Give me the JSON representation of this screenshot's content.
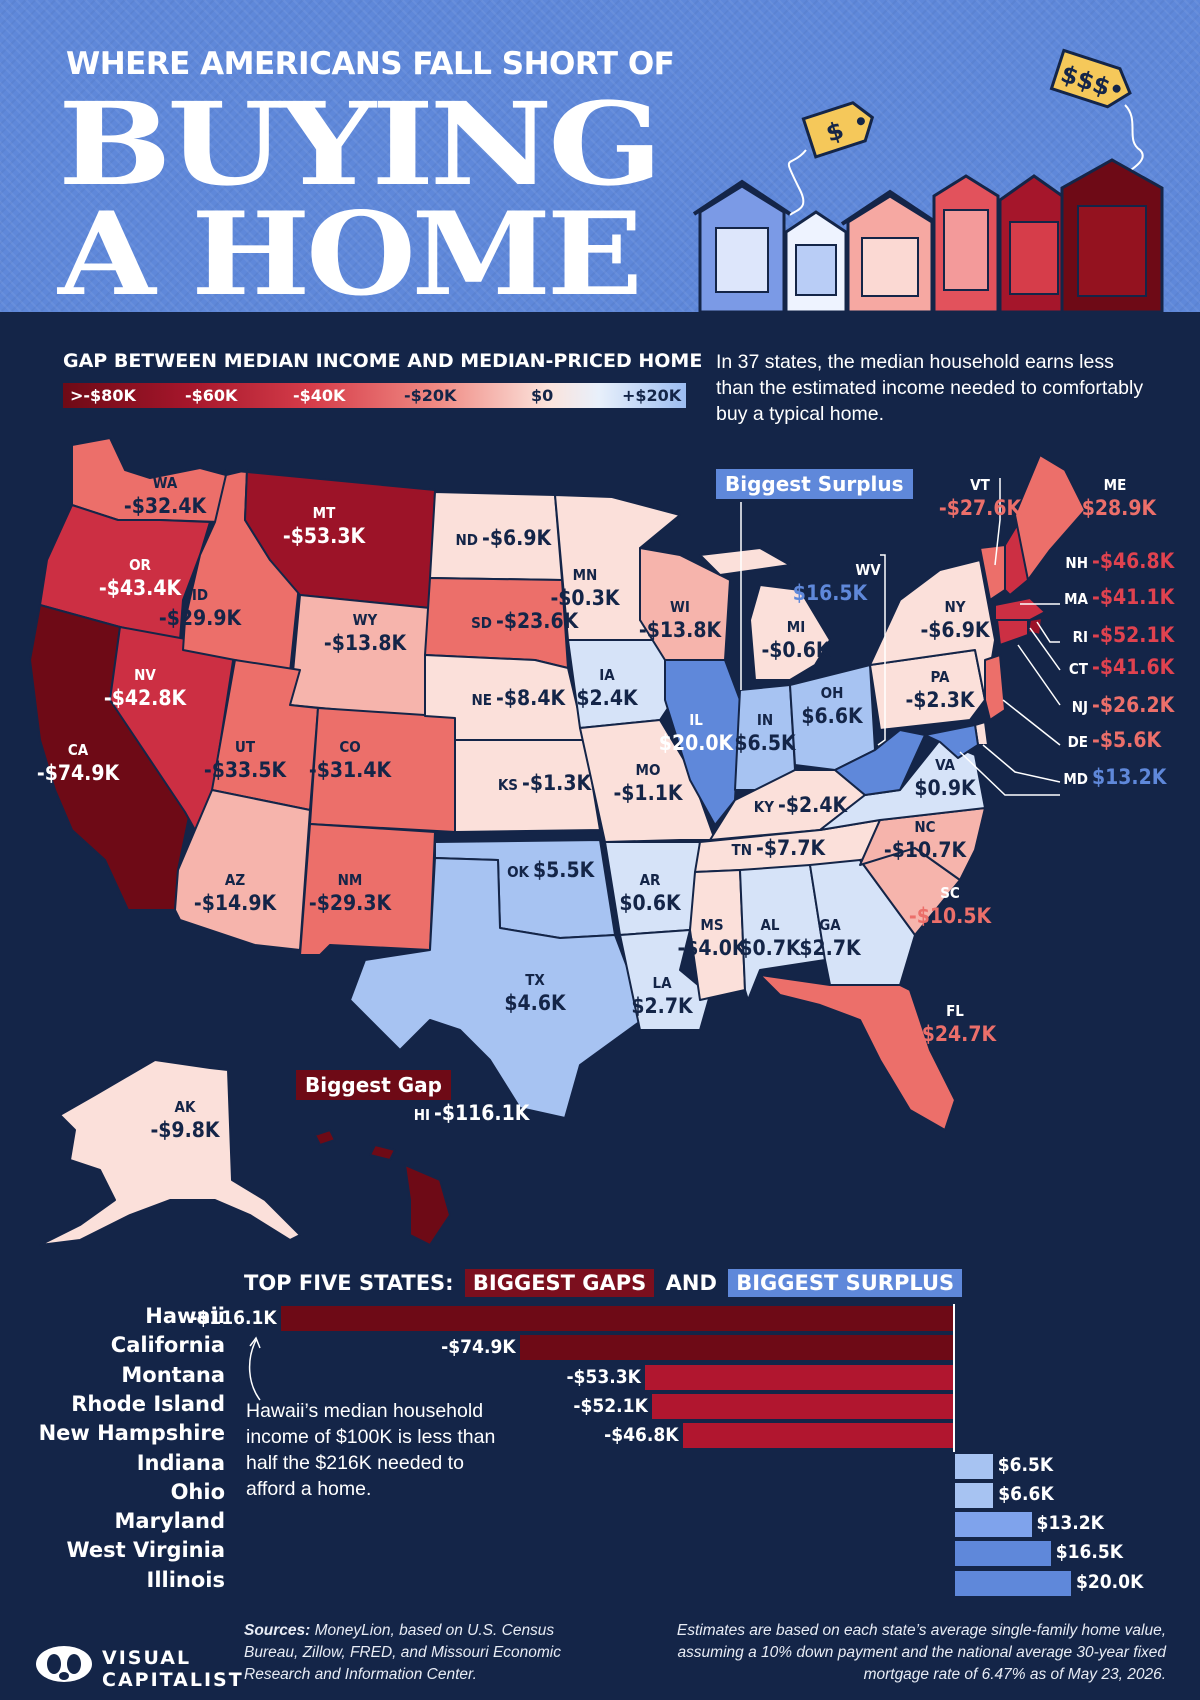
{
  "header": {
    "kicker": "WHERE AMERICANS FALL SHORT OF",
    "title_line1": "BUYING",
    "title_line2": "A HOME",
    "price_tag_small": "$",
    "price_tag_large": "$$$"
  },
  "legend": {
    "title": "GAP BETWEEN MEDIAN INCOME AND MEDIAN-PRICED HOME",
    "labels": [
      ">-$80K",
      "-$60K",
      "-$40K",
      "-$20K",
      "$0",
      "+$20K"
    ]
  },
  "intro": "In 37 states, the median household earns less than the estimated income needed to comfortably buy a typical home.",
  "callouts": {
    "biggest_surplus": "Biggest Surplus",
    "biggest_gap": "Biggest Gap"
  },
  "states": {
    "WA": {
      "label": "WA",
      "value": "-$32.4K",
      "gap": -32.4
    },
    "OR": {
      "label": "OR",
      "value": "-$43.4K",
      "gap": -43.4
    },
    "CA": {
      "label": "CA",
      "value": "-$74.9K",
      "gap": -74.9
    },
    "NV": {
      "label": "NV",
      "value": "-$42.8K",
      "gap": -42.8
    },
    "ID": {
      "label": "ID",
      "value": "-$29.9K",
      "gap": -29.9
    },
    "MT": {
      "label": "MT",
      "value": "-$53.3K",
      "gap": -53.3
    },
    "WY": {
      "label": "WY",
      "value": "-$13.8K",
      "gap": -13.8
    },
    "UT": {
      "label": "UT",
      "value": "-$33.5K",
      "gap": -33.5
    },
    "CO": {
      "label": "CO",
      "value": "-$31.4K",
      "gap": -31.4
    },
    "AZ": {
      "label": "AZ",
      "value": "-$14.9K",
      "gap": -14.9
    },
    "NM": {
      "label": "NM",
      "value": "-$29.3K",
      "gap": -29.3
    },
    "ND": {
      "label": "ND",
      "value": "-$6.9K",
      "gap": -6.9
    },
    "SD": {
      "label": "SD",
      "value": "-$23.6K",
      "gap": -23.6
    },
    "NE": {
      "label": "NE",
      "value": "-$8.4K",
      "gap": -8.4
    },
    "KS": {
      "label": "KS",
      "value": "-$1.3K",
      "gap": -1.3
    },
    "OK": {
      "label": "OK",
      "value": "$5.5K",
      "gap": 5.5
    },
    "TX": {
      "label": "TX",
      "value": "$4.6K",
      "gap": 4.6
    },
    "MN": {
      "label": "MN",
      "value": "-$0.3K",
      "gap": -0.3
    },
    "IA": {
      "label": "IA",
      "value": "$2.4K",
      "gap": 2.4
    },
    "MO": {
      "label": "MO",
      "value": "-$1.1K",
      "gap": -1.1
    },
    "AR": {
      "label": "AR",
      "value": "$0.6K",
      "gap": 0.6
    },
    "LA": {
      "label": "LA",
      "value": "$2.7K",
      "gap": 2.7
    },
    "WI": {
      "label": "WI",
      "value": "-$13.8K",
      "gap": -13.8
    },
    "IL": {
      "label": "IL",
      "value": "$20.0K",
      "gap": 20.0
    },
    "MI": {
      "label": "MI",
      "value": "-$0.6K",
      "gap": -0.6
    },
    "IN": {
      "label": "IN",
      "value": "$6.5K",
      "gap": 6.5
    },
    "OH": {
      "label": "OH",
      "value": "$6.6K",
      "gap": 6.6
    },
    "KY": {
      "label": "KY",
      "value": "-$2.4K",
      "gap": -2.4
    },
    "TN": {
      "label": "TN",
      "value": "-$7.7K",
      "gap": -7.7
    },
    "MS": {
      "label": "MS",
      "value": "-$4.0K",
      "gap": -4.0
    },
    "AL": {
      "label": "AL",
      "value": "$0.7K",
      "gap": 0.7
    },
    "GA": {
      "label": "GA",
      "value": "$2.7K",
      "gap": 2.7
    },
    "FL": {
      "label": "FL",
      "value": "-$24.7K",
      "gap": -24.7
    },
    "SC": {
      "label": "SC",
      "value": "-$10.5K",
      "gap": -10.5
    },
    "NC": {
      "label": "NC",
      "value": "-$10.7K",
      "gap": -10.7
    },
    "VA": {
      "label": "VA",
      "value": "$0.9K",
      "gap": 0.9
    },
    "WV": {
      "label": "WV",
      "value": "$16.5K",
      "gap": 16.5
    },
    "PA": {
      "label": "PA",
      "value": "-$2.3K",
      "gap": -2.3
    },
    "NY": {
      "label": "NY",
      "value": "-$6.9K",
      "gap": -6.9
    },
    "VT": {
      "label": "VT",
      "value": "-$27.6K",
      "gap": -27.6
    },
    "ME": {
      "label": "ME",
      "value": "-$28.9K",
      "gap": -28.9
    },
    "NH": {
      "label": "NH",
      "value": "-$46.8K",
      "gap": -46.8
    },
    "MA": {
      "label": "MA",
      "value": "-$41.1K",
      "gap": -41.1
    },
    "RI": {
      "label": "RI",
      "value": "-$52.1K",
      "gap": -52.1
    },
    "CT": {
      "label": "CT",
      "value": "-$41.6K",
      "gap": -41.6
    },
    "NJ": {
      "label": "NJ",
      "value": "-$26.2K",
      "gap": -26.2
    },
    "DE": {
      "label": "DE",
      "value": "-$5.6K",
      "gap": -5.6
    },
    "MD": {
      "label": "MD",
      "value": "$13.2K",
      "gap": 13.2
    },
    "AK": {
      "label": "AK",
      "value": "-$9.8K",
      "gap": -9.8
    },
    "HI": {
      "label": "HI",
      "value": "-$116.1K",
      "gap": -116.1
    }
  },
  "ranking": {
    "title_prefix": "TOP FIVE STATES:",
    "gaps_label": "BIGGEST GAPS",
    "and": "AND",
    "surplus_label": "BIGGEST SURPLUS",
    "rows": [
      {
        "state": "Hawaii",
        "value": -116.1,
        "label": "-$116.1K"
      },
      {
        "state": "California",
        "value": -74.9,
        "label": "-$74.9K"
      },
      {
        "state": "Montana",
        "value": -53.3,
        "label": "-$53.3K"
      },
      {
        "state": "Rhode Island",
        "value": -52.1,
        "label": "-$52.1K"
      },
      {
        "state": "New Hampshire",
        "value": -46.8,
        "label": "-$46.8K"
      },
      {
        "state": "Indiana",
        "value": 6.5,
        "label": "$6.5K"
      },
      {
        "state": "Ohio",
        "value": 6.6,
        "label": "$6.6K"
      },
      {
        "state": "Maryland",
        "value": 13.2,
        "label": "$13.2K"
      },
      {
        "state": "West Virginia",
        "value": 16.5,
        "label": "$16.5K"
      },
      {
        "state": "Illinois",
        "value": 20.0,
        "label": "$20.0K"
      }
    ],
    "note": "Hawaii’s median household income of $100K is less than half the $216K needed to afford a home."
  },
  "chart_data": {
    "type": "bar",
    "title": "TOP FIVE STATES: BIGGEST GAPS AND BIGGEST SURPLUS",
    "categories": [
      "Hawaii",
      "California",
      "Montana",
      "Rhode Island",
      "New Hampshire",
      "Indiana",
      "Ohio",
      "Maryland",
      "West Virginia",
      "Illinois"
    ],
    "values": [
      -116.1,
      -74.9,
      -53.3,
      -52.1,
      -46.8,
      6.5,
      6.6,
      13.2,
      16.5,
      20.0
    ],
    "orientation": "horizontal"
  },
  "footer": {
    "sources_label": "Sources:",
    "sources_text": " MoneyLion, based on U.S. Census Bureau, Zillow, FRED, and Missouri Economic Research and Information Center.",
    "method": "Estimates are based on each state’s average single-family home value, assuming a 10% down payment and the national average 30-year fixed mortgage rate of 6.47% as of May 23, 2026.",
    "brand_line1": "VISUAL",
    "brand_line2": "CAPITALIST"
  },
  "colors": {
    "background": "#142548",
    "header": "#5f88da",
    "gap_dark": "#6e0a16",
    "surplus": "#5f88da"
  }
}
